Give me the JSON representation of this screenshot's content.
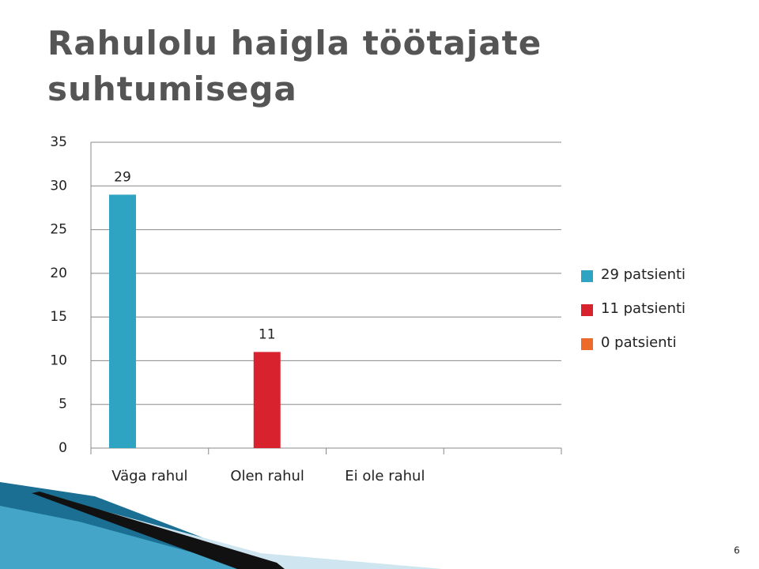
{
  "chart_data": {
    "type": "bar",
    "title": "Rahulolu haigla töötajate suhtumisega",
    "categories": [
      "Väga rahul",
      "Olen rahul",
      "Ei ole rahul",
      null
    ],
    "series": [
      {
        "name": "29 patsienti",
        "color": "#2ea3c2",
        "values": [
          29,
          null,
          null,
          null
        ]
      },
      {
        "name": "11 patsienti",
        "color": "#d8232f",
        "values": [
          null,
          11,
          null,
          null
        ]
      },
      {
        "name": "0 patsienti",
        "color": "#ec6b2a",
        "values": [
          null,
          null,
          0,
          null
        ]
      }
    ],
    "ylim": [
      0,
      35
    ],
    "yticks": [
      0,
      5,
      10,
      15,
      20,
      25,
      30,
      35
    ],
    "grid": true,
    "legend": "right"
  },
  "page_number": "6"
}
